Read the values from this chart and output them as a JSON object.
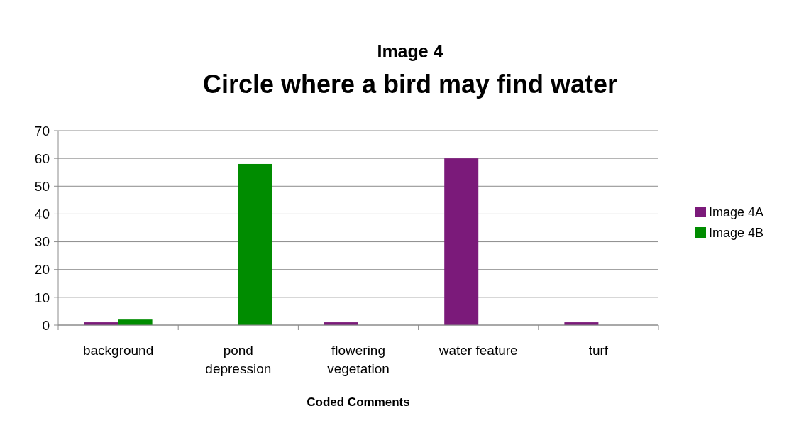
{
  "chart_data": {
    "type": "bar",
    "title": "Image 4",
    "subtitle": "Circle where a bird may find water",
    "xlabel": "Coded Comments",
    "categories": [
      "background",
      "pond depression",
      "flowering vegetation",
      "water feature",
      "turf"
    ],
    "series": [
      {
        "name": "Image 4A",
        "color": "#7b1a7a",
        "values": [
          1,
          0,
          1,
          60,
          1
        ]
      },
      {
        "name": "Image 4B",
        "color": "#008c00",
        "values": [
          2,
          58,
          0,
          0,
          0
        ]
      }
    ],
    "ylim": [
      0,
      70
    ],
    "yticks": [
      0,
      10,
      20,
      30,
      40,
      50,
      60,
      70
    ],
    "grid": "y",
    "legend": "right"
  }
}
